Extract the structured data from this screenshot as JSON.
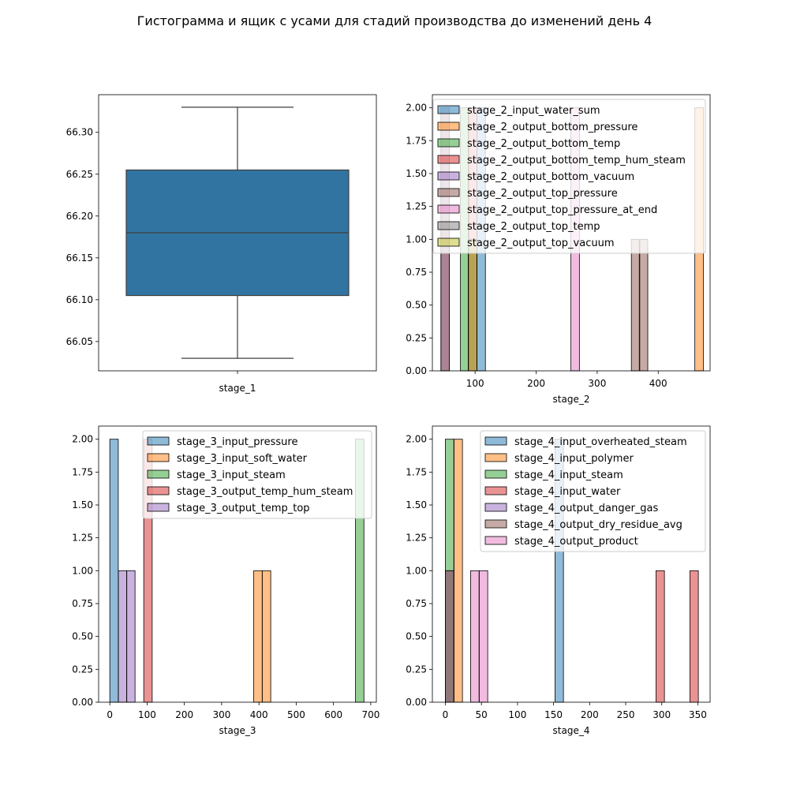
{
  "figure": {
    "title": "Гистограмма и ящик с усами для стадий производства до изменений день 4"
  },
  "chart_data": [
    {
      "type": "box",
      "xlabel": "stage_1",
      "ylabel": "",
      "ylim": [
        66.015,
        66.345
      ],
      "yticks": [
        66.05,
        66.1,
        66.15,
        66.2,
        66.25,
        66.3
      ],
      "box": {
        "whisker_low": 66.03,
        "q1": 66.105,
        "median": 66.18,
        "q3": 66.255,
        "whisker_high": 66.33,
        "color": "#3274a1"
      }
    },
    {
      "type": "histogram",
      "xlabel": "stage_2",
      "ylabel": "",
      "xlim": [
        30,
        485
      ],
      "ylim": [
        0,
        2.1
      ],
      "xticks": [
        100,
        200,
        300,
        400
      ],
      "yticks": [
        0.0,
        0.25,
        0.5,
        0.75,
        1.0,
        1.25,
        1.5,
        1.75,
        2.0
      ],
      "bin_width": 13.9,
      "legend_position": "top-right",
      "series": [
        {
          "name": "stage_2_input_water_sum",
          "color": "#1f77b4",
          "bins": [
            [
              103,
              2
            ]
          ]
        },
        {
          "name": "stage_2_output_bottom_pressure",
          "color": "#ff7f0e",
          "bins": [
            [
              460,
              2
            ]
          ]
        },
        {
          "name": "stage_2_output_bottom_temp",
          "color": "#2ca02c",
          "bins": [
            [
              76,
              2
            ]
          ]
        },
        {
          "name": "stage_2_output_bottom_temp_hum_steam",
          "color": "#d62728",
          "bins": [
            [
              89,
              2
            ]
          ]
        },
        {
          "name": "stage_2_output_bottom_vacuum",
          "color": "#9467bd",
          "bins": [
            [
              44,
              2
            ]
          ]
        },
        {
          "name": "stage_2_output_top_pressure",
          "color": "#8c564b",
          "bins": [
            [
              44,
              2
            ],
            [
              356,
              1
            ],
            [
              369,
              1
            ]
          ]
        },
        {
          "name": "stage_2_output_top_pressure_at_end",
          "color": "#e377c2",
          "bins": [
            [
              257,
              2
            ]
          ]
        },
        {
          "name": "stage_2_output_top_temp",
          "color": "#7f7f7f",
          "bins": [
            [
              89,
              1
            ]
          ]
        },
        {
          "name": "stage_2_output_top_vacuum",
          "color": "#bcbd22",
          "bins": [
            [
              89,
              1
            ]
          ]
        }
      ]
    },
    {
      "type": "histogram",
      "xlabel": "stage_3",
      "ylabel": "",
      "xlim": [
        -30,
        715
      ],
      "ylim": [
        0,
        2.1
      ],
      "xticks": [
        0,
        100,
        200,
        300,
        400,
        500,
        600,
        700
      ],
      "yticks": [
        0.0,
        0.25,
        0.5,
        0.75,
        1.0,
        1.25,
        1.5,
        1.75,
        2.0
      ],
      "bin_width": 22.7,
      "legend_position": "top-right",
      "series": [
        {
          "name": "stage_3_input_pressure",
          "color": "#1f77b4",
          "bins": [
            [
              0,
              2
            ]
          ]
        },
        {
          "name": "stage_3_input_soft_water",
          "color": "#ff7f0e",
          "bins": [
            [
              386,
              1
            ],
            [
              409,
              1
            ]
          ]
        },
        {
          "name": "stage_3_input_steam",
          "color": "#2ca02c",
          "bins": [
            [
              659,
              2
            ]
          ]
        },
        {
          "name": "stage_3_output_temp_hum_steam",
          "color": "#d62728",
          "bins": [
            [
              91,
              2
            ]
          ]
        },
        {
          "name": "stage_3_output_temp_top",
          "color": "#9467bd",
          "bins": [
            [
              23,
              1
            ],
            [
              45,
              1
            ]
          ]
        }
      ]
    },
    {
      "type": "histogram",
      "xlabel": "stage_4",
      "ylabel": "",
      "xlim": [
        -18,
        367
      ],
      "ylim": [
        0,
        2.1
      ],
      "xticks": [
        0,
        50,
        100,
        150,
        200,
        250,
        300,
        350
      ],
      "yticks": [
        0.0,
        0.25,
        0.5,
        0.75,
        1.0,
        1.25,
        1.5,
        1.75,
        2.0
      ],
      "bin_width": 11.7,
      "legend_position": "top-right",
      "series": [
        {
          "name": "stage_4_input_overheated_steam",
          "color": "#1f77b4",
          "bins": [
            [
              152,
              2
            ]
          ]
        },
        {
          "name": "stage_4_input_polymer",
          "color": "#ff7f0e",
          "bins": [
            [
              12,
              2
            ]
          ]
        },
        {
          "name": "stage_4_input_steam",
          "color": "#2ca02c",
          "bins": [
            [
              0,
              2
            ]
          ]
        },
        {
          "name": "stage_4_input_water",
          "color": "#d62728",
          "bins": [
            [
              292,
              1
            ],
            [
              339,
              1
            ]
          ]
        },
        {
          "name": "stage_4_output_danger_gas",
          "color": "#9467bd",
          "bins": [
            [
              0,
              1
            ]
          ]
        },
        {
          "name": "stage_4_output_dry_residue_avg",
          "color": "#8c564b",
          "bins": [
            [
              0,
              1
            ]
          ]
        },
        {
          "name": "stage_4_output_product",
          "color": "#e377c2",
          "bins": [
            [
              35,
              1
            ],
            [
              47,
              1
            ]
          ]
        }
      ]
    }
  ]
}
